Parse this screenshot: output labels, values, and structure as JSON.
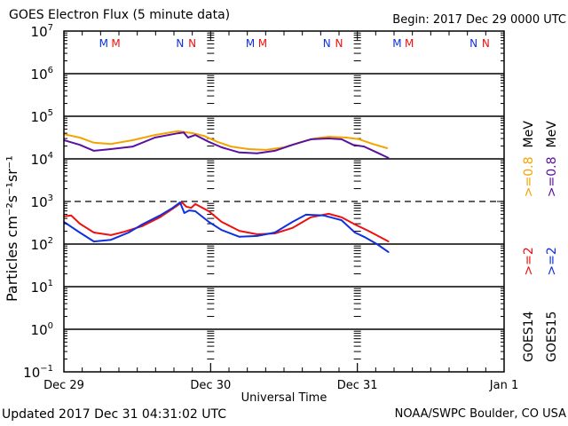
{
  "header": {
    "title": "GOES Electron Flux (5 minute data)",
    "begin": "Begin: 2017 Dec 29 0000 UTC"
  },
  "footer": {
    "updated": "Updated 2017 Dec 31 04:31:02 UTC",
    "credit": "NOAA/SWPC Boulder, CO USA"
  },
  "colors": {
    "goes14_08": "#f5a300",
    "goes15_08": "#5a10a0",
    "goes14_2": "#ee1111",
    "goes15_2": "#1030e0",
    "axis": "#000000"
  },
  "chart_data": {
    "type": "line",
    "title": "GOES Electron Flux (5 minute data)",
    "xlabel": "Universal Time",
    "ylabel": "Particles cm⁻²s⁻¹sr⁻¹",
    "yscale": "log",
    "ylim": [
      0.1,
      10000000
    ],
    "xlim_hours": [
      0,
      72
    ],
    "x_unit": "hours since 2017 Dec 29 0000 UTC",
    "x_ticks": [
      {
        "hour": 0,
        "label": "Dec 29"
      },
      {
        "hour": 24,
        "label": "Dec 30"
      },
      {
        "hour": 48,
        "label": "Dec 31"
      },
      {
        "hour": 72,
        "label": "Jan 1"
      }
    ],
    "y_ticks": [
      {
        "exp": 7,
        "base": "10",
        "sup": "7"
      },
      {
        "exp": 6,
        "base": "10",
        "sup": "6"
      },
      {
        "exp": 5,
        "base": "10",
        "sup": "5"
      },
      {
        "exp": 4,
        "base": "10",
        "sup": "4"
      },
      {
        "exp": 3,
        "base": "10",
        "sup": "3"
      },
      {
        "exp": 2,
        "base": "10",
        "sup": "2"
      },
      {
        "exp": 1,
        "base": "10",
        "sup": "1"
      },
      {
        "exp": 0,
        "base": "10",
        "sup": "0"
      },
      {
        "exp": -1,
        "base": "10",
        "sup": "−1"
      }
    ],
    "grid_lines_log": [
      6,
      5,
      4,
      2,
      1,
      0
    ],
    "threshold_line_log": 3,
    "day_separators_hours": [
      24,
      48
    ],
    "markers": [
      {
        "hour": 6.5,
        "label": "M",
        "color": "#1030e0"
      },
      {
        "hour": 8.5,
        "label": "M",
        "color": "#ee1111"
      },
      {
        "hour": 19.0,
        "label": "N",
        "color": "#1030e0"
      },
      {
        "hour": 21.0,
        "label": "N",
        "color": "#ee1111"
      },
      {
        "hour": 30.5,
        "label": "M",
        "color": "#1030e0"
      },
      {
        "hour": 32.5,
        "label": "M",
        "color": "#ee1111"
      },
      {
        "hour": 43.0,
        "label": "N",
        "color": "#1030e0"
      },
      {
        "hour": 45.0,
        "label": "N",
        "color": "#ee1111"
      },
      {
        "hour": 54.5,
        "label": "M",
        "color": "#1030e0"
      },
      {
        "hour": 56.5,
        "label": "M",
        "color": "#ee1111"
      },
      {
        "hour": 67.0,
        "label": "N",
        "color": "#1030e0"
      },
      {
        "hour": 69.0,
        "label": "N",
        "color": "#ee1111"
      }
    ],
    "legend": {
      "placement": "right",
      "columns": [
        {
          "sat": "GOES14",
          "entries": [
            {
              "text": ">=2",
              "color": "#ee1111"
            },
            {
              "text": ">=0.8",
              "color": "#f5a300"
            }
          ],
          "unit": "MeV"
        },
        {
          "sat": "GOES15",
          "entries": [
            {
              "text": ">=2",
              "color": "#1030e0"
            },
            {
              "text": ">=0.8",
              "color": "#5a10a0"
            }
          ],
          "unit": "MeV"
        }
      ]
    },
    "series": [
      {
        "name": "GOES14 >=0.8 MeV",
        "color": "#f5a300",
        "hours": [
          0,
          2.6,
          4.9,
          7.7,
          11.3,
          14.9,
          18.6,
          21.2,
          22.9,
          25.1,
          27.3,
          30.2,
          33.1,
          36.0,
          38.9,
          41.1,
          43.3,
          46.2,
          48.3,
          50.5,
          52.9
        ],
        "log10": [
          4.58,
          4.5,
          4.38,
          4.35,
          4.44,
          4.56,
          4.65,
          4.6,
          4.54,
          4.4,
          4.29,
          4.23,
          4.21,
          4.27,
          4.4,
          4.48,
          4.52,
          4.5,
          4.46,
          4.35,
          4.25
        ]
      },
      {
        "name": "GOES15 >=0.8 MeV",
        "color": "#5a10a0",
        "hours": [
          0,
          2.6,
          4.9,
          7.7,
          11.3,
          14.9,
          18.6,
          19.6,
          20.3,
          21.5,
          23.7,
          25.8,
          28.7,
          31.6,
          34.5,
          37.4,
          40.4,
          43.3,
          45.4,
          47.3,
          49.1,
          51.2,
          53.1
        ],
        "log10": [
          4.44,
          4.33,
          4.19,
          4.23,
          4.29,
          4.5,
          4.6,
          4.62,
          4.5,
          4.56,
          4.4,
          4.27,
          4.15,
          4.13,
          4.19,
          4.33,
          4.46,
          4.48,
          4.46,
          4.33,
          4.29,
          4.15,
          4.02
        ]
      },
      {
        "name": "GOES14 >=2 MeV",
        "color": "#ee1111",
        "hours": [
          0,
          1.2,
          2.6,
          4.9,
          7.7,
          9.9,
          12.8,
          15.7,
          17.8,
          19.3,
          20.0,
          20.8,
          21.5,
          23.7,
          25.8,
          28.7,
          31.6,
          34.5,
          37.4,
          40.4,
          43.3,
          45.4,
          47.6,
          49.8,
          51.9,
          53.1
        ],
        "log10": [
          2.65,
          2.67,
          2.48,
          2.27,
          2.21,
          2.29,
          2.42,
          2.63,
          2.83,
          2.98,
          2.88,
          2.85,
          2.94,
          2.77,
          2.52,
          2.31,
          2.23,
          2.25,
          2.38,
          2.63,
          2.71,
          2.63,
          2.46,
          2.31,
          2.15,
          2.06
        ]
      },
      {
        "name": "GOES15 >=2 MeV",
        "color": "#1030e0",
        "hours": [
          0,
          2.6,
          4.9,
          7.7,
          10.6,
          12.8,
          15.7,
          17.8,
          19.0,
          19.7,
          20.5,
          21.5,
          23.7,
          25.8,
          28.7,
          31.6,
          34.5,
          37.4,
          39.6,
          42.5,
          45.4,
          47.6,
          49.1,
          51.2,
          53.1
        ],
        "log10": [
          2.52,
          2.27,
          2.06,
          2.1,
          2.27,
          2.46,
          2.67,
          2.85,
          2.98,
          2.73,
          2.79,
          2.77,
          2.52,
          2.33,
          2.17,
          2.19,
          2.27,
          2.52,
          2.69,
          2.67,
          2.56,
          2.27,
          2.17,
          2.0,
          1.81
        ]
      }
    ]
  }
}
